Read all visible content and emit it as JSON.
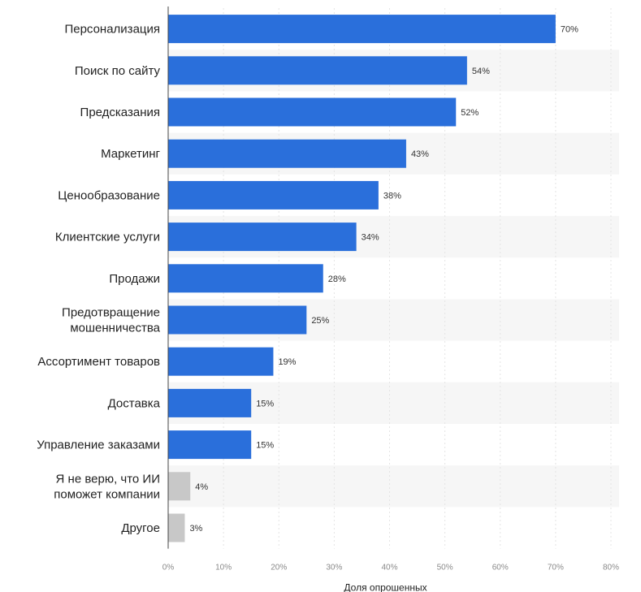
{
  "chart_data": {
    "type": "bar",
    "orientation": "horizontal",
    "categories": [
      "Персонализация",
      "Поиск по сайту",
      "Предсказания",
      "Маркетинг",
      "Ценообразование",
      "Клиентские услуги",
      "Продажи",
      "Предотвращение\nмошенничества",
      "Ассортимент товаров",
      "Доставка",
      "Управление заказами",
      "Я не верю, что ИИ\nпоможет компании",
      "Другое"
    ],
    "values": [
      70,
      54,
      52,
      43,
      38,
      34,
      28,
      25,
      19,
      15,
      15,
      4,
      3
    ],
    "value_labels": [
      "70%",
      "54%",
      "52%",
      "43%",
      "38%",
      "34%",
      "28%",
      "25%",
      "19%",
      "15%",
      "15%",
      "4%",
      "3%"
    ],
    "bar_colors": [
      "#2a6fdb",
      "#2a6fdb",
      "#2a6fdb",
      "#2a6fdb",
      "#2a6fdb",
      "#2a6fdb",
      "#2a6fdb",
      "#2a6fdb",
      "#2a6fdb",
      "#2a6fdb",
      "#2a6fdb",
      "#c8c8c8",
      "#c8c8c8"
    ],
    "xlabel": "Доля опрошенных",
    "ylabel": "",
    "xlim": [
      0,
      80
    ],
    "x_ticks": [
      0,
      10,
      20,
      30,
      40,
      50,
      60,
      70,
      80
    ],
    "x_tick_labels": [
      "0%",
      "10%",
      "20%",
      "30%",
      "40%",
      "50%",
      "60%",
      "70%",
      "80%"
    ],
    "grid": "vertical",
    "legend": "none"
  }
}
